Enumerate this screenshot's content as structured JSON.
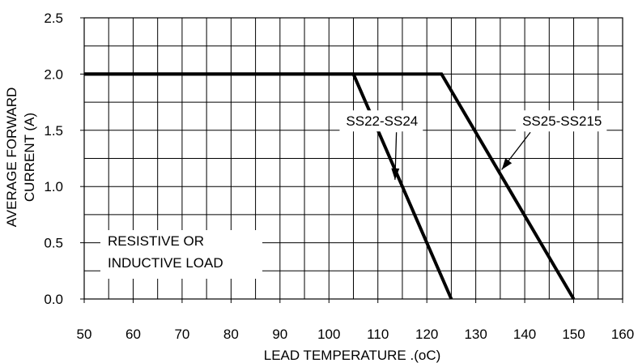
{
  "chart_data": {
    "type": "line",
    "title": "",
    "xlabel": "LEAD TEMPERATURE .(oC)",
    "ylabel": [
      "AVERAGE FORWARD",
      "CURRENT (A)"
    ],
    "xlim": [
      50,
      160
    ],
    "ylim": [
      0,
      2.5
    ],
    "x_ticks": [
      50,
      60,
      70,
      80,
      90,
      100,
      110,
      120,
      130,
      140,
      150,
      160
    ],
    "y_ticks": [
      0.0,
      0.5,
      1.0,
      1.5,
      2.0,
      2.5
    ],
    "y_tick_labels": [
      "0.0",
      "0.5",
      "1.0",
      "1.5",
      "2.0",
      "2.5"
    ],
    "grid": true,
    "grid_minor_x": 5,
    "grid_minor_y": 0.25,
    "series": [
      {
        "name": "SS22-SS24",
        "x": [
          50,
          105,
          125
        ],
        "y": [
          2.0,
          2.0,
          0.0
        ]
      },
      {
        "name": "SS25-SS215",
        "x": [
          50,
          123,
          150
        ],
        "y": [
          2.0,
          2.0,
          0.0
        ]
      }
    ],
    "annotations": [
      {
        "text": "SS22-SS24",
        "x": 103.5,
        "y": 1.54,
        "arrow_to": [
          113.5,
          1.06
        ]
      },
      {
        "text": "SS25-SS215",
        "x": 139.5,
        "y": 1.54,
        "arrow_to": [
          135.3,
          1.15
        ]
      }
    ],
    "note": [
      "RESISTIVE OR",
      "INDUCTIVE LOAD"
    ],
    "colors": {
      "line": "#000000",
      "grid": "#000000",
      "background": "#ffffff"
    }
  }
}
